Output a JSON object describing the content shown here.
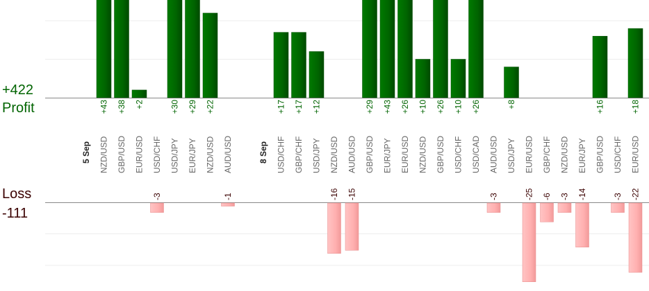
{
  "summary": {
    "profit_value": "+422",
    "profit_label": "Profit",
    "loss_label": "Loss",
    "loss_value": "-111"
  },
  "colors": {
    "profit_bar": "#006400",
    "profit_bar_dark": "#004d00",
    "loss_bar": "#ffb3b3",
    "loss_bar_edge": "#e88c8c",
    "profit_text": "#006400",
    "loss_text": "#3a0000",
    "axis": "#888888",
    "grid": "#ececec",
    "tick_text": "#666666",
    "date_text": "#222222"
  },
  "chart_data": {
    "type": "bar",
    "categories": [
      "5 Sep",
      "NZD/USD",
      "GBP/USD",
      "EUR/USD",
      "USD/CHF",
      "USD/JPY",
      "EUR/JPY",
      "NZD/USD",
      "AUD/USD",
      "",
      "8 Sep",
      "USD/CHF",
      "GBP/CHF",
      "USD/JPY",
      "NZD/USD",
      "AUD/USD",
      "GBP/USD",
      "EUR/JPY",
      "EUR/USD",
      "NZD/USD",
      "GBP/USD",
      "USD/CHF",
      "USD/CAD",
      "AUD/USD",
      "USD/JPY",
      "EUR/USD",
      "GBP/CHF",
      "NZD/USD",
      "EUR/JPY",
      "GBP/USD",
      "USD/CHF",
      "EUR/USD"
    ],
    "separators": [
      "5 Sep",
      "8 Sep"
    ],
    "series": [
      {
        "values": [
          null,
          43,
          38,
          2,
          null,
          30,
          29,
          22,
          null,
          null,
          null,
          17,
          17,
          12,
          null,
          null,
          29,
          43,
          26,
          10,
          26,
          10,
          26,
          null,
          8,
          null,
          null,
          null,
          null,
          16,
          null,
          18
        ]
      },
      {
        "values": [
          null,
          null,
          null,
          null,
          -3,
          null,
          null,
          null,
          -1,
          null,
          null,
          null,
          null,
          null,
          -16,
          -15,
          null,
          null,
          null,
          null,
          null,
          null,
          null,
          -3,
          null,
          -25,
          -6,
          -3,
          -14,
          null,
          -3,
          -22
        ]
      }
    ],
    "profit_labels": [
      "",
      "+43",
      "+38",
      "+2",
      "",
      "+30",
      "+29",
      "+22",
      "",
      "",
      "",
      "+17",
      "+17",
      "+12",
      "",
      "",
      "+29",
      "+43",
      "+26",
      "+10",
      "+26",
      "+10",
      "+26",
      "",
      "+8",
      "",
      "",
      "",
      "",
      "+16",
      "",
      "+18"
    ],
    "loss_labels": [
      "",
      "",
      "",
      "",
      "-3",
      "",
      "",
      "",
      "-1",
      "",
      "",
      "",
      "",
      "",
      "-16",
      "-15",
      "",
      "",
      "",
      "",
      "",
      "",
      "",
      "-3",
      "",
      "-25",
      "-6",
      "-3",
      "-14",
      "",
      "-3",
      "-22"
    ],
    "grid": true
  }
}
